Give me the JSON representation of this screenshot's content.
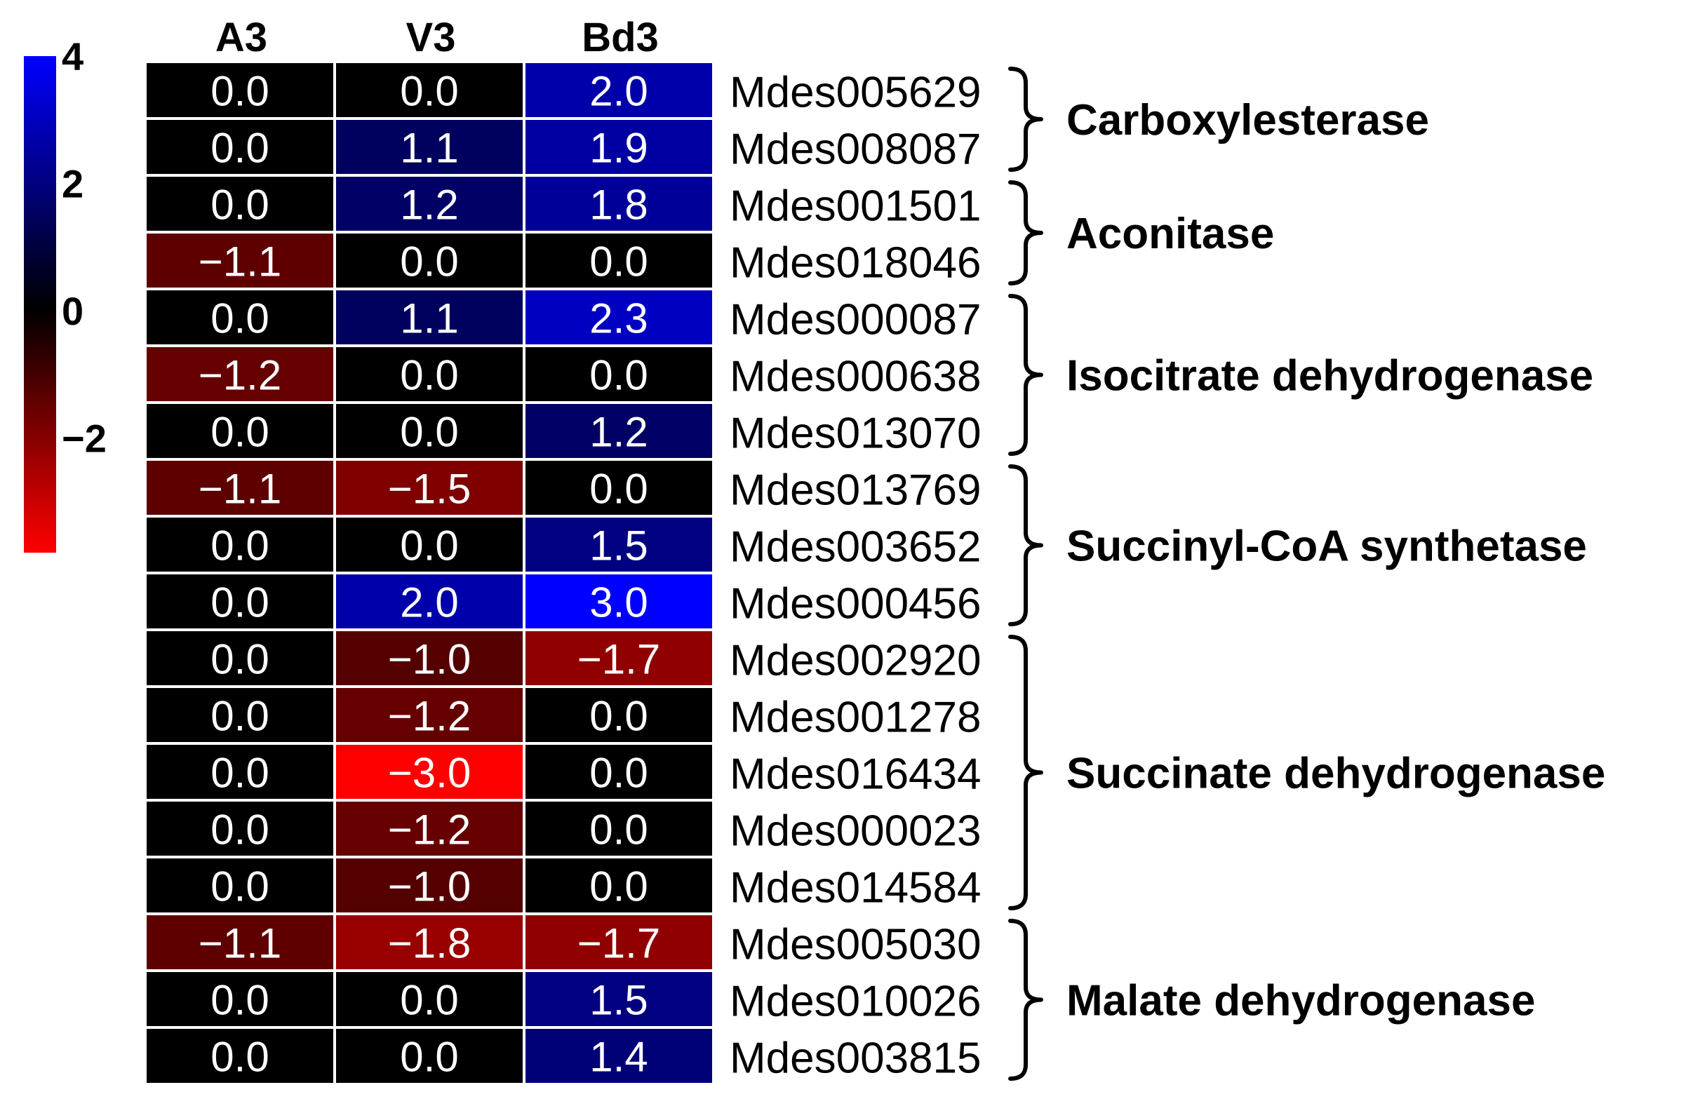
{
  "chart_data": {
    "type": "heatmap",
    "columns": [
      "A3",
      "V3",
      "Bd3"
    ],
    "rows": [
      {
        "gene": "Mdes005629",
        "values": [
          "0.0",
          "0.0",
          "2.0"
        ]
      },
      {
        "gene": "Mdes008087",
        "values": [
          "0.0",
          "1.1",
          "1.9"
        ]
      },
      {
        "gene": "Mdes001501",
        "values": [
          "0.0",
          "1.2",
          "1.8"
        ]
      },
      {
        "gene": "Mdes018046",
        "values": [
          "−1.1",
          "0.0",
          "0.0"
        ]
      },
      {
        "gene": "Mdes000087",
        "values": [
          "0.0",
          "1.1",
          "2.3"
        ]
      },
      {
        "gene": "Mdes000638",
        "values": [
          "−1.2",
          "0.0",
          "0.0"
        ]
      },
      {
        "gene": "Mdes013070",
        "values": [
          "0.0",
          "0.0",
          "1.2"
        ]
      },
      {
        "gene": "Mdes013769",
        "values": [
          "−1.1",
          "−1.5",
          "0.0"
        ]
      },
      {
        "gene": "Mdes003652",
        "values": [
          "0.0",
          "0.0",
          "1.5"
        ]
      },
      {
        "gene": "Mdes000456",
        "values": [
          "0.0",
          "2.0",
          "3.0"
        ]
      },
      {
        "gene": "Mdes002920",
        "values": [
          "0.0",
          "−1.0",
          "−1.7"
        ]
      },
      {
        "gene": "Mdes001278",
        "values": [
          "0.0",
          "−1.2",
          "0.0"
        ]
      },
      {
        "gene": "Mdes016434",
        "values": [
          "0.0",
          "−3.0",
          "0.0"
        ]
      },
      {
        "gene": "Mdes000023",
        "values": [
          "0.0",
          "−1.2",
          "0.0"
        ]
      },
      {
        "gene": "Mdes014584",
        "values": [
          "0.0",
          "−1.0",
          "0.0"
        ]
      },
      {
        "gene": "Mdes005030",
        "values": [
          "−1.1",
          "−1.8",
          "−1.7"
        ]
      },
      {
        "gene": "Mdes010026",
        "values": [
          "0.0",
          "0.0",
          "1.5"
        ]
      },
      {
        "gene": "Mdes003815",
        "values": [
          "0.0",
          "0.0",
          "1.4"
        ]
      }
    ],
    "groups": [
      {
        "label": "Carboxylesterase",
        "start": 0,
        "end": 1
      },
      {
        "label": "Aconitase",
        "start": 2,
        "end": 3
      },
      {
        "label": "Isocitrate dehydrogenase",
        "start": 4,
        "end": 6
      },
      {
        "label": "Succinyl-CoA synthetase",
        "start": 7,
        "end": 9
      },
      {
        "label": "Succinate dehydrogenase",
        "start": 10,
        "end": 14
      },
      {
        "label": "Malate dehydrogenase",
        "start": 15,
        "end": 17
      }
    ],
    "color_scale": {
      "min": -3,
      "max": 3,
      "low_color": "#ff0000",
      "mid_color": "#000000",
      "high_color": "#0000ff",
      "ticks": [
        {
          "value": 4,
          "label": "4"
        },
        {
          "value": 2,
          "label": "2"
        },
        {
          "value": 0,
          "label": "0"
        },
        {
          "value": -2,
          "label": "−2"
        }
      ],
      "range": [
        -3.8,
        4.0
      ]
    }
  }
}
